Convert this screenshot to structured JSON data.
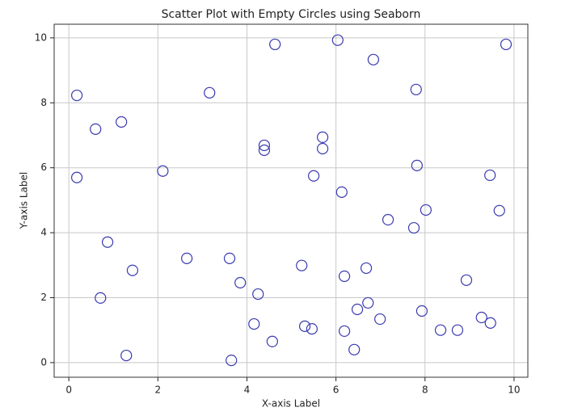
{
  "chart_data": {
    "type": "scatter",
    "title": "Scatter Plot with Empty Circles using Seaborn",
    "x_label": "X-axis Label",
    "y_label": "Y-axis Label",
    "color": "#3a3ab0",
    "grid": true,
    "xlim": [
      -0.33,
      10.31
    ],
    "ylim": [
      -0.45,
      10.42
    ],
    "xticks": [
      0,
      2,
      4,
      6,
      8,
      10
    ],
    "yticks": [
      0,
      2,
      4,
      6,
      8,
      10
    ],
    "x": [
      0.18,
      0.18,
      0.6,
      1.18,
      0.71,
      0.87,
      1.43,
      1.29,
      2.11,
      2.65,
      3.16,
      3.61,
      3.85,
      3.65,
      4.25,
      4.16,
      4.57,
      4.39,
      4.39,
      4.63,
      5.23,
      5.3,
      5.46,
      5.5,
      5.7,
      5.7,
      6.04,
      6.13,
      6.19,
      6.19,
      6.41,
      6.48,
      6.68,
      6.72,
      6.99,
      7.17,
      6.84,
      7.8,
      7.82,
      7.75,
      8.02,
      7.93,
      8.35,
      8.73,
      8.93,
      9.27,
      9.47,
      9.46,
      9.67,
      9.82
    ],
    "y": [
      8.23,
      5.7,
      7.19,
      7.41,
      1.99,
      3.71,
      2.84,
      0.22,
      5.9,
      3.21,
      8.31,
      3.21,
      2.46,
      0.07,
      2.11,
      1.19,
      0.65,
      6.69,
      6.54,
      9.8,
      2.99,
      1.12,
      1.04,
      5.75,
      6.94,
      6.59,
      9.93,
      5.25,
      2.66,
      0.97,
      0.4,
      1.64,
      2.91,
      1.84,
      1.34,
      4.4,
      9.33,
      8.41,
      6.07,
      4.15,
      4.7,
      1.59,
      1.0,
      1.0,
      2.54,
      1.39,
      1.22,
      5.77,
      4.68,
      9.8
    ]
  }
}
